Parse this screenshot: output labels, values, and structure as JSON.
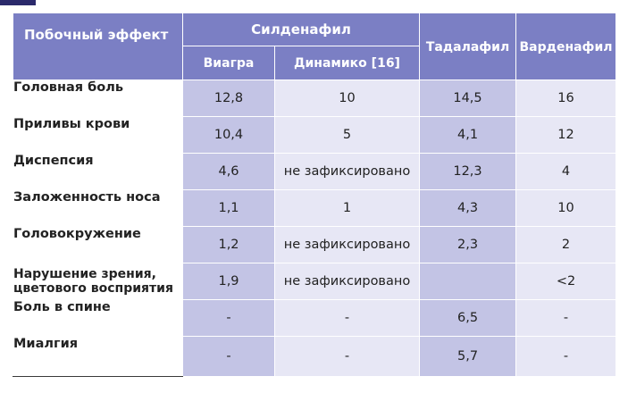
{
  "header": {
    "stub": "Побочный эффект",
    "group": "Силденафил",
    "sub": [
      "Виагра",
      "Динамико [16]"
    ],
    "cols": [
      "Тадалафил",
      "Варденафил"
    ]
  },
  "rows": [
    {
      "label": "Головная боль",
      "values": [
        "12,8",
        "10",
        "14,5",
        "16"
      ]
    },
    {
      "label": "Приливы крови",
      "values": [
        "10,4",
        "5",
        "4,1",
        "12"
      ]
    },
    {
      "label": "Диспепсия",
      "values": [
        "4,6",
        "не зафиксировано",
        "12,3",
        "4"
      ]
    },
    {
      "label": "Заложенность носа",
      "values": [
        "1,1",
        "1",
        "4,3",
        "10"
      ]
    },
    {
      "label": "Головокружение",
      "values": [
        "1,2",
        "не зафиксировано",
        "2,3",
        "2"
      ]
    },
    {
      "label_lines": [
        "Нарушение зрения,",
        "цветового восприятия"
      ],
      "values": [
        "1,9",
        "не зафиксировано",
        "",
        "<2"
      ]
    },
    {
      "label": "Боль в спине",
      "values": [
        "-",
        "-",
        "6,5",
        "-"
      ]
    },
    {
      "label": "Миалгия",
      "values": [
        "-",
        "-",
        "5,7",
        "-"
      ]
    }
  ],
  "colors": {
    "header": "#7b7fc4",
    "cell_dark": "#c3c4e5",
    "cell_light": "#e7e7f5"
  }
}
